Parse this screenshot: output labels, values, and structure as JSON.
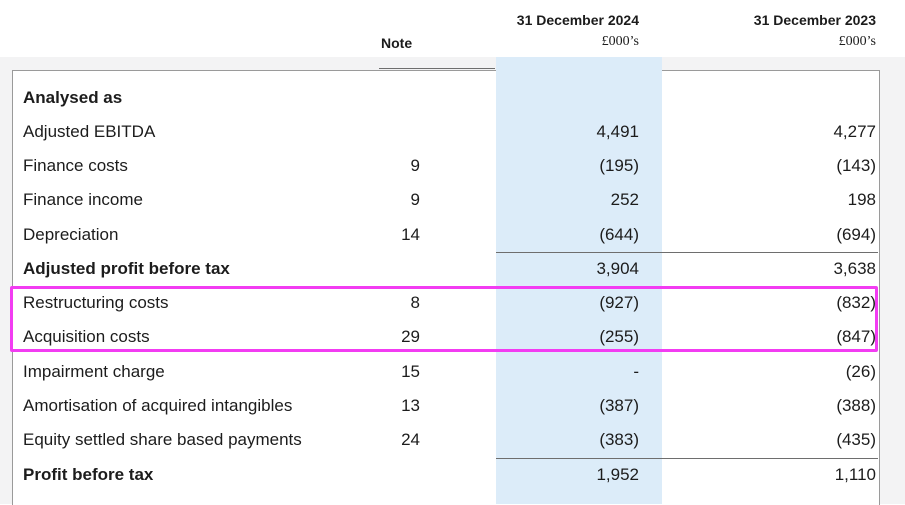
{
  "header": {
    "note_label": "Note",
    "col_2024": {
      "title": "31 December 2024",
      "unit": "£000’s"
    },
    "col_2023": {
      "title": "31 December 2023",
      "unit": "£000’s"
    }
  },
  "section_title": "Analysed as",
  "rows": [
    {
      "label": "Adjusted EBITDA",
      "note": "",
      "v2024": "4,491",
      "v2023": "4,277"
    },
    {
      "label": "Finance costs",
      "note": "9",
      "v2024": "(195)",
      "v2023": "(143)"
    },
    {
      "label": "Finance income",
      "note": "9",
      "v2024": "252",
      "v2023": "198"
    },
    {
      "label": "Depreciation",
      "note": "14",
      "v2024": "(644)",
      "v2023": "(694)"
    },
    {
      "label": "Adjusted profit before tax",
      "note": "",
      "v2024": "3,904",
      "v2023": "3,638"
    },
    {
      "label": "Restructuring costs",
      "note": "8",
      "v2024": "(927)",
      "v2023": "(832)"
    },
    {
      "label": "Acquisition costs",
      "note": "29",
      "v2024": "(255)",
      "v2023": "(847)"
    },
    {
      "label": "Impairment charge",
      "note": "15",
      "v2024": "-",
      "v2023": "(26)"
    },
    {
      "label": "Amortisation of acquired intangibles",
      "note": "13",
      "v2024": "(387)",
      "v2023": "(388)"
    },
    {
      "label": "Equity settled share based payments",
      "note": "24",
      "v2024": "(383)",
      "v2023": "(435)"
    },
    {
      "label": "Profit before tax",
      "note": "",
      "v2024": "1,952",
      "v2023": "1,110"
    }
  ],
  "colors": {
    "highlight_column": "#dcecf9",
    "annotation_box": "#f23cf2"
  }
}
